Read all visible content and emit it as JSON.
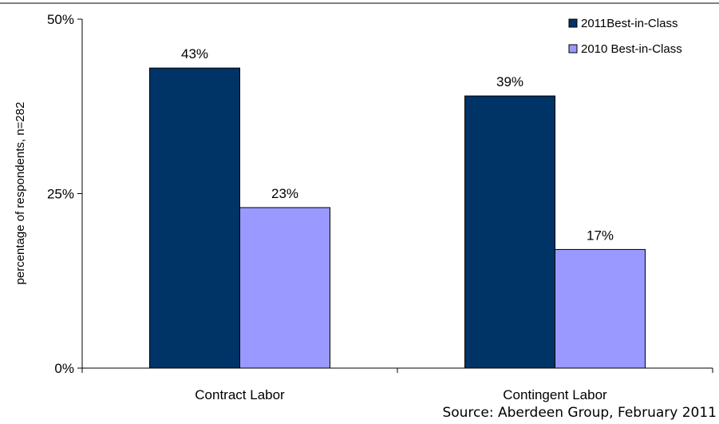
{
  "chart_data": {
    "type": "bar",
    "categories": [
      "Contract Labor",
      "Contingent Labor"
    ],
    "series": [
      {
        "name": "2011Best-in-Class",
        "values": [
          43,
          39
        ],
        "labels": [
          "43%",
          "39%"
        ],
        "color": "#003366"
      },
      {
        "name": "2010 Best-in-Class",
        "values": [
          23,
          17
        ],
        "labels": [
          "23%",
          "17%"
        ],
        "color": "#9999ff"
      }
    ],
    "ylabel": "percentage of respondents, n=282",
    "ylim": [
      0,
      50
    ],
    "yticks": [
      0,
      25,
      50
    ],
    "ytick_labels": [
      "0%",
      "25%",
      "50%"
    ],
    "legend_position": "top-right",
    "grid": false
  },
  "source": "Source: Aberdeen Group, February 2011"
}
